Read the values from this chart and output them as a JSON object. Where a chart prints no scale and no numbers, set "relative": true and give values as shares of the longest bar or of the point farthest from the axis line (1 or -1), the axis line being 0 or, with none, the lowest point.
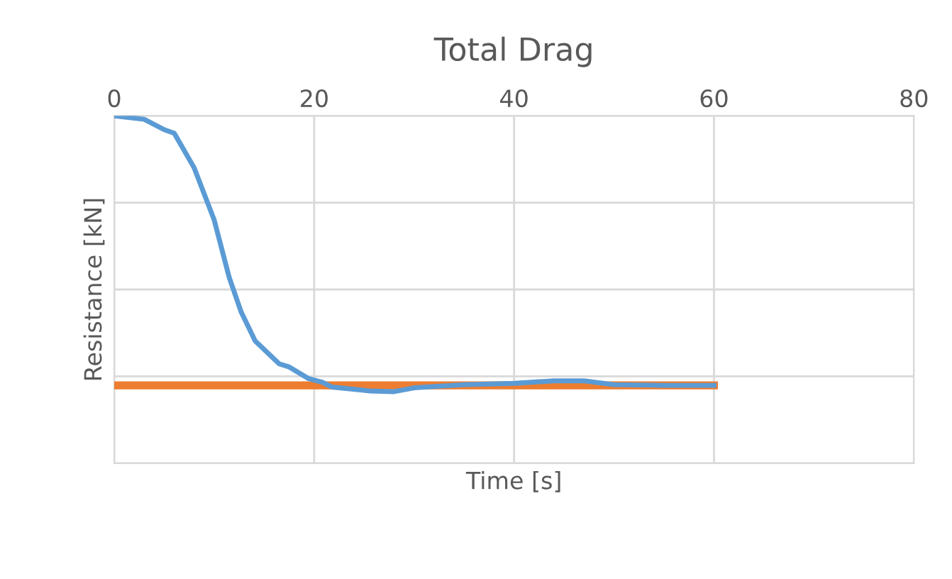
{
  "chart_data": {
    "type": "line",
    "title": "Total Drag",
    "xlabel": "Time [s]",
    "ylabel": "Resistance [kN]",
    "relative": true,
    "xlim": [
      0,
      80
    ],
    "xticks": [
      0,
      20,
      40,
      60,
      80
    ],
    "grid": true,
    "marker": "none",
    "line_style": "solid",
    "series": [
      {
        "color": "#5b9bd5",
        "x": [
          0,
          3,
          5,
          6,
          8,
          10,
          11.5,
          12.7,
          14.1,
          16.5,
          17.5,
          19.4,
          20.8,
          21.8,
          25.6,
          28,
          30,
          35,
          40,
          44,
          47,
          50,
          55,
          60
        ],
        "values": [
          1,
          0.99,
          0.96,
          0.95,
          0.85,
          0.7,
          0.535,
          0.435,
          0.352,
          0.286,
          0.277,
          0.244,
          0.233,
          0.219,
          0.208,
          0.206,
          0.217,
          0.226,
          0.23,
          0.237,
          0.237,
          0.226,
          0.224,
          0.224
        ]
      },
      {
        "color": "#ed7d31",
        "x": [
          0,
          60
        ],
        "values": [
          0.224,
          0.224
        ]
      }
    ]
  }
}
